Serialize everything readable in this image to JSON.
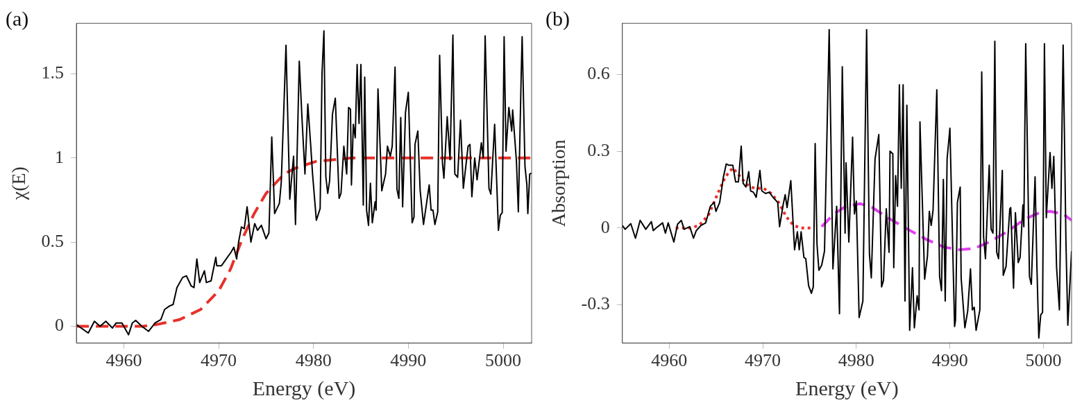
{
  "chart_data": [
    {
      "type": "line",
      "xlabel": "Energy (eV)",
      "ylabel": "χ(E)",
      "annotations": [
        "(a)"
      ],
      "xlim": [
        4955,
        5003
      ],
      "ylim": [
        -0.1,
        1.8
      ],
      "xticks": [
        4960,
        4970,
        4980,
        4990,
        5000
      ],
      "yticks": [
        0,
        0.5,
        1,
        1.5
      ],
      "grid": false,
      "legend": false,
      "marker": "none",
      "series": [
        {
          "color": "#000000",
          "line_style": "solid",
          "x": [
            4955.0,
            4956.25,
            4956.9,
            4957.5,
            4958.1,
            4958.8,
            4959.2,
            4959.8,
            4960.5,
            4960.9,
            4961.25,
            4961.9,
            4962.6,
            4963.3,
            4963.9,
            4964.3,
            4964.8,
            4965.2,
            4965.6,
            4966.2,
            4966.6,
            4967.1,
            4967.4,
            4967.7,
            4968.0,
            4968.5,
            4968.7,
            4969.2,
            4969.7,
            4969.8,
            4970.3,
            4970.8,
            4971.3,
            4971.6,
            4971.9,
            4972.1,
            4972.4,
            4972.7,
            4973.0,
            4973.4,
            4973.8,
            4974.1,
            4974.5,
            4975.0,
            4975.3,
            4975.6,
            4975.9,
            4976.4,
            4976.6,
            4976.9,
            4977.1,
            4977.5,
            4977.9,
            4978.1,
            4978.5,
            4978.8,
            4979.1,
            4979.4,
            4979.7,
            4979.9,
            4980.3,
            4980.7,
            4980.9,
            4981.1,
            4981.3,
            4981.5,
            4981.7,
            4982.0,
            4982.3,
            4982.7,
            4982.9,
            4983.2,
            4983.5,
            4983.7,
            4983.9,
            4984.0,
            4984.2,
            4984.4,
            4984.6,
            4984.8,
            4985.0,
            4985.25,
            4985.4,
            4985.6,
            4985.8,
            4986.0,
            4986.2,
            4986.5,
            4986.6,
            4986.8,
            4987.2,
            4987.6,
            4987.8,
            4988.1,
            4988.3,
            4988.6,
            4988.8,
            4989.0,
            4989.2,
            4989.4,
            4989.7,
            4990.0,
            4990.4,
            4990.6,
            4990.7,
            4991.0,
            4991.25,
            4991.6,
            4992.2,
            4992.4,
            4992.6,
            4992.8,
            4993.1,
            4993.3,
            4993.6,
            4993.75,
            4994.1,
            4994.4,
            4994.7,
            4994.9,
            4995.2,
            4995.5,
            4995.8,
            4996.3,
            4996.5,
            4996.7,
            4997.0,
            4997.25,
            4997.7,
            4997.9,
            4998.1,
            4998.5,
            4998.7,
            4999.1,
            4999.5,
            4999.7,
            4999.9,
            5000.1,
            5000.3,
            5000.6,
            5000.9,
            5001.0,
            5001.4,
            5001.6,
            5001.9,
            5002.0,
            5002.3,
            5002.5,
            5002.6,
            5002.8,
            5003.0
          ],
          "values": [
            0.01,
            -0.04,
            0.03,
            0,
            0.03,
            -0.01,
            0.02,
            0.02,
            -0.05,
            0.02,
            0.035,
            0,
            -0.03,
            0.02,
            0.04,
            0.1,
            0.12,
            0.13,
            0.23,
            0.29,
            0.3,
            0.24,
            0.23,
            0.4,
            0.26,
            0.33,
            0.26,
            0.27,
            0.41,
            0.36,
            0.36,
            0.4,
            0.44,
            0.47,
            0.4,
            0.5,
            0.59,
            0.58,
            0.71,
            0.5,
            0.61,
            0.57,
            0.6,
            0.52,
            0.555,
            1.125,
            0.67,
            0.73,
            0.855,
            1.34,
            1.67,
            0.755,
            1.01,
            0.605,
            1.575,
            1.22,
            0.905,
            1.32,
            1.08,
            0.905,
            0.63,
            0.7,
            1.505,
            1.755,
            0.89,
            0.79,
            0.865,
            1.26,
            1.355,
            0.76,
            0.79,
            1.07,
            0.905,
            1.3,
            1.29,
            0.84,
            1.2,
            1.12,
            1.555,
            1.205,
            1.555,
            0.72,
            1.48,
            0.69,
            0.6,
            0.85,
            0.615,
            0.74,
            0.69,
            1.41,
            0.805,
            0.905,
            1.07,
            1.01,
            1.07,
            1.54,
            0.815,
            0.76,
            1.24,
            0.71,
            1.27,
            1.39,
            0.615,
            0.65,
            1.08,
            1.16,
            0.805,
            0.605,
            0.84,
            0.69,
            0.69,
            0.605,
            0.68,
            1.61,
            0.97,
            0.88,
            1.245,
            0.99,
            1.73,
            0.905,
            0.885,
            1.225,
            0.82,
            1.07,
            1.08,
            0.77,
            1.0,
            0.87,
            1.09,
            1.0,
            1.725,
            0.82,
            0.785,
            1.2,
            0.57,
            0.66,
            0.675,
            1.72,
            1.04,
            1.3,
            1.16,
            1.285,
            0.98,
            0.68,
            1.49,
            1.72,
            0.95,
            0.84,
            0.67,
            0.905,
            0.91
          ]
        },
        {
          "color": "#e8302a",
          "line_style": "dashed",
          "x": [
            4955,
            4962,
            4963.4,
            4965.9,
            4968.1,
            4970,
            4971.25,
            4972.5,
            4973.75,
            4975,
            4976.9,
            4978.1,
            4980.3,
            4984,
            5003
          ],
          "values": [
            0,
            0,
            0.01,
            0.04,
            0.1,
            0.21,
            0.34,
            0.52,
            0.67,
            0.79,
            0.905,
            0.94,
            0.98,
            1.0,
            1.0
          ]
        }
      ]
    },
    {
      "type": "line",
      "xlabel": "Energy (eV)",
      "ylabel": "Absorption",
      "annotations": [
        "(b)"
      ],
      "xlim": [
        4955,
        5003
      ],
      "ylim": [
        -0.45,
        0.8
      ],
      "xticks": [
        4960,
        4970,
        4980,
        4990,
        5000
      ],
      "yticks": [
        -0.3,
        0,
        0.3,
        0.6
      ],
      "grid": false,
      "legend": false,
      "marker": "none",
      "series": [
        {
          "color": "#000000",
          "line_style": "solid",
          "x": [
            4955.0,
            4955.3,
            4955.9,
            4956.4,
            4956.9,
            4957.5,
            4957.8,
            4958.1,
            4958.3,
            4958.6,
            4959.3,
            4959.6,
            4959.9,
            4960.5,
            4960.9,
            4961.3,
            4961.6,
            4962.2,
            4962.6,
            4962.9,
            4963.4,
            4963.9,
            4964.4,
            4964.8,
            4965.0,
            4965.4,
            4965.8,
            4966.1,
            4966.4,
            4966.8,
            4967.1,
            4967.4,
            4967.7,
            4967.9,
            4968.2,
            4968.5,
            4968.7,
            4969.0,
            4969.3,
            4969.7,
            4969.9,
            4970.3,
            4970.7,
            4971.1,
            4971.6,
            4971.8,
            4972.2,
            4972.4,
            4972.6,
            4973.0,
            4973.4,
            4973.7,
            4973.9,
            4974.1,
            4974.4,
            4974.6,
            4974.9,
            4975.2,
            4975.4,
            4975.6,
            4975.8,
            4976.0,
            4976.3,
            4976.6,
            4977.1,
            4977.5,
            4977.9,
            4978.2,
            4978.5,
            4978.8,
            4978.9,
            4979.2,
            4979.6,
            4979.8,
            4980.0,
            4980.3,
            4980.7,
            4981.1,
            4981.4,
            4981.6,
            4982.0,
            4982.4,
            4982.7,
            4982.9,
            4983.2,
            4983.5,
            4983.6,
            4983.9,
            4984.0,
            4984.2,
            4984.4,
            4984.6,
            4984.8,
            4985.0,
            4985.2,
            4985.4,
            4985.7,
            4986.0,
            4986.2,
            4986.5,
            4986.7,
            4986.8,
            4987.3,
            4987.6,
            4987.8,
            4988.0,
            4988.2,
            4988.6,
            4988.9,
            4989.1,
            4989.3,
            4989.5,
            4989.7,
            4990.0,
            4990.5,
            4990.6,
            4990.8,
            4991.1,
            4991.2,
            4991.6,
            4991.9,
            4992.2,
            4992.4,
            4992.6,
            4992.8,
            4993.0,
            4993.2,
            4993.4,
            4993.6,
            4993.8,
            4994.2,
            4994.4,
            4994.6,
            4994.8,
            4995.0,
            4995.2,
            4995.6,
            4995.7,
            4996.0,
            4996.4,
            4996.5,
            4996.8,
            4997.0,
            4997.3,
            4997.5,
            4997.8,
            4997.9,
            4998.1,
            4998.5,
            4998.7,
            4999.1,
            4999.3,
            4999.5,
            4999.7,
            4999.9,
            5000.1,
            5000.3,
            5000.7,
            5000.9,
            5001.1,
            5001.4,
            5001.7,
            5002.1,
            5002.4,
            5002.6,
            5003.0
          ],
          "values": [
            0.01,
            -0.005,
            0.017,
            -0.04,
            0.03,
            -0.005,
            0.01,
            0.025,
            -0.01,
            0,
            0.02,
            -0.02,
            0.02,
            -0.055,
            0.015,
            0.03,
            -0.005,
            0.005,
            -0.04,
            -0.01,
            0.01,
            0.02,
            0.085,
            0.1,
            0.065,
            0.1,
            0.2,
            0.25,
            0.245,
            0.245,
            0.18,
            0.18,
            0.32,
            0.175,
            0.16,
            0.22,
            0.145,
            0.14,
            0.12,
            0.225,
            0.145,
            0.135,
            0.14,
            0.12,
            0.1,
            0.005,
            0.095,
            0.13,
            0.08,
            0.185,
            -0.085,
            -0.015,
            -0.085,
            -0.015,
            -0.115,
            -0.12,
            -0.225,
            -0.255,
            -0.23,
            0.33,
            -0.065,
            -0.165,
            -0.145,
            -0.09,
            0.775,
            -0.16,
            0.085,
            -0.335,
            0.63,
            -0.02,
            0.255,
            -0.055,
            0.355,
            0.055,
            0.105,
            -0.35,
            -0.285,
            0.775,
            -0.1,
            -0.195,
            0.27,
            0.365,
            -0.23,
            -0.205,
            0.075,
            -0.095,
            0.3,
            0.29,
            -0.155,
            0.205,
            0.085,
            0.56,
            0.155,
            0.56,
            -0.285,
            0.48,
            -0.4,
            -0.155,
            -0.39,
            -0.265,
            -0.32,
            0.415,
            -0.2,
            -0.11,
            0.065,
            0.01,
            0.07,
            0.54,
            -0.19,
            -0.245,
            0.19,
            -0.285,
            0.27,
            0.39,
            -0.385,
            -0.36,
            0.1,
            0.16,
            -0.195,
            -0.39,
            -0.325,
            -0.16,
            -0.32,
            -0.31,
            -0.4,
            -0.36,
            -0.32,
            0.61,
            -0.035,
            -0.12,
            0.245,
            -0.005,
            -0.02,
            0.73,
            -0.095,
            -0.12,
            0.225,
            -0.185,
            -0.15,
            0.075,
            0.08,
            -0.235,
            0.06,
            -0.135,
            -0.115,
            0.09,
            0.005,
            0.72,
            -0.19,
            -0.22,
            0.2,
            -0.155,
            -0.43,
            -0.34,
            -0.33,
            0.72,
            0.04,
            0.295,
            0.155,
            0.28,
            -0.155,
            -0.32,
            0.715,
            -0.055,
            -0.38,
            -0.09
          ]
        },
        {
          "color": "#e8302a",
          "line_style": "dotted",
          "x": [
            4960.7,
            4962.3,
            4963.2,
            4964.2,
            4965.2,
            4966.0,
            4966.8,
            4967.5,
            4968.3,
            4969.1,
            4970.1,
            4970.9,
            4971.7,
            4972.5,
            4973.3,
            4974.1,
            4975.2
          ],
          "values": [
            0,
            0,
            0.01,
            0.05,
            0.135,
            0.2,
            0.235,
            0.205,
            0.17,
            0.155,
            0.155,
            0.135,
            0.1,
            0.045,
            0.01,
            0,
            0
          ]
        },
        {
          "color": "#e040f0",
          "line_style": "dashed",
          "x": [
            4976.3,
            4977.6,
            4978.9,
            4980.4,
            4981.7,
            4983.6,
            4985.5,
            4987.5,
            4989.4,
            4991.0,
            4992.6,
            4994.2,
            4996.1,
            4998.0,
            4999.6,
            5000.7,
            5002.1,
            5003.0
          ],
          "values": [
            0.005,
            0.055,
            0.085,
            0.095,
            0.08,
            0.035,
            -0.005,
            -0.045,
            -0.075,
            -0.085,
            -0.08,
            -0.055,
            -0.015,
            0.035,
            0.06,
            0.065,
            0.055,
            0.03
          ]
        }
      ]
    }
  ]
}
